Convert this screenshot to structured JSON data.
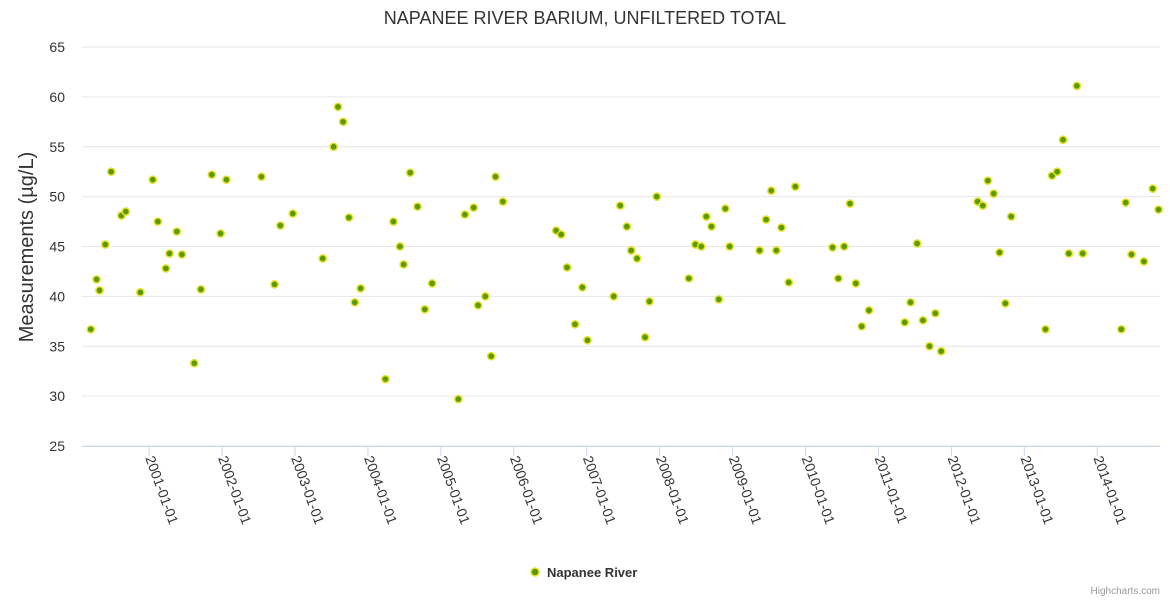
{
  "credits": "Highcharts.com",
  "colors": {
    "marker_fill": "#5a9c00",
    "marker_stroke": "#e8e030",
    "grid": "#e6e6e6"
  },
  "chart_data": {
    "type": "scatter",
    "title": "NAPANEE RIVER BARIUM, UNFILTERED TOTAL",
    "xlabel": "",
    "ylabel": "Measurements (µg/L)",
    "ylim": [
      25,
      65
    ],
    "yticks": [
      25,
      30,
      35,
      40,
      45,
      50,
      55,
      60,
      65
    ],
    "xlim": [
      2000.08,
      2014.86
    ],
    "xticks": [
      {
        "value": 2001.0,
        "label": "2001-01-01"
      },
      {
        "value": 2002.0,
        "label": "2002-01-01"
      },
      {
        "value": 2003.0,
        "label": "2003-01-01"
      },
      {
        "value": 2004.0,
        "label": "2004-01-01"
      },
      {
        "value": 2005.0,
        "label": "2005-01-01"
      },
      {
        "value": 2006.0,
        "label": "2006-01-01"
      },
      {
        "value": 2007.0,
        "label": "2007-01-01"
      },
      {
        "value": 2008.0,
        "label": "2008-01-01"
      },
      {
        "value": 2009.0,
        "label": "2009-01-01"
      },
      {
        "value": 2010.0,
        "label": "2010-01-01"
      },
      {
        "value": 2011.0,
        "label": "2011-01-01"
      },
      {
        "value": 2012.0,
        "label": "2012-01-01"
      },
      {
        "value": 2013.0,
        "label": "2013-01-01"
      },
      {
        "value": 2014.0,
        "label": "2014-01-01"
      }
    ],
    "grid": true,
    "legend_position": "bottom-center",
    "series": [
      {
        "name": "Napanee River",
        "points": [
          [
            2000.2,
            36.7
          ],
          [
            2000.28,
            41.7
          ],
          [
            2000.32,
            40.6
          ],
          [
            2000.4,
            45.2
          ],
          [
            2000.48,
            52.5
          ],
          [
            2000.62,
            48.1
          ],
          [
            2000.68,
            48.5
          ],
          [
            2000.88,
            40.4
          ],
          [
            2001.05,
            51.7
          ],
          [
            2001.12,
            47.5
          ],
          [
            2001.23,
            42.8
          ],
          [
            2001.28,
            44.3
          ],
          [
            2001.38,
            46.5
          ],
          [
            2001.45,
            44.2
          ],
          [
            2001.62,
            33.3
          ],
          [
            2001.71,
            40.7
          ],
          [
            2001.86,
            52.2
          ],
          [
            2001.98,
            46.3
          ],
          [
            2002.06,
            51.7
          ],
          [
            2002.54,
            52.0
          ],
          [
            2002.72,
            41.2
          ],
          [
            2002.8,
            47.1
          ],
          [
            2002.97,
            48.3
          ],
          [
            2003.38,
            43.8
          ],
          [
            2003.53,
            55.0
          ],
          [
            2003.59,
            59.0
          ],
          [
            2003.66,
            57.5
          ],
          [
            2003.74,
            47.9
          ],
          [
            2003.82,
            39.4
          ],
          [
            2003.9,
            40.8
          ],
          [
            2004.24,
            31.7
          ],
          [
            2004.35,
            47.5
          ],
          [
            2004.44,
            45.0
          ],
          [
            2004.49,
            43.2
          ],
          [
            2004.58,
            52.4
          ],
          [
            2004.68,
            49.0
          ],
          [
            2004.78,
            38.7
          ],
          [
            2004.88,
            41.3
          ],
          [
            2005.24,
            29.7
          ],
          [
            2005.33,
            48.2
          ],
          [
            2005.45,
            48.9
          ],
          [
            2005.51,
            39.1
          ],
          [
            2005.61,
            40.0
          ],
          [
            2005.69,
            34.0
          ],
          [
            2005.75,
            52.0
          ],
          [
            2005.85,
            49.5
          ],
          [
            2006.58,
            46.6
          ],
          [
            2006.65,
            46.2
          ],
          [
            2006.73,
            42.9
          ],
          [
            2006.84,
            37.2
          ],
          [
            2006.94,
            40.9
          ],
          [
            2007.01,
            35.6
          ],
          [
            2007.37,
            40.0
          ],
          [
            2007.46,
            49.1
          ],
          [
            2007.55,
            47.0
          ],
          [
            2007.61,
            44.6
          ],
          [
            2007.69,
            43.8
          ],
          [
            2007.8,
            35.9
          ],
          [
            2007.86,
            39.5
          ],
          [
            2007.96,
            50.0
          ],
          [
            2008.4,
            41.8
          ],
          [
            2008.49,
            45.2
          ],
          [
            2008.57,
            45.0
          ],
          [
            2008.64,
            48.0
          ],
          [
            2008.71,
            47.0
          ],
          [
            2008.81,
            39.7
          ],
          [
            2008.9,
            48.8
          ],
          [
            2008.96,
            45.0
          ],
          [
            2009.37,
            44.6
          ],
          [
            2009.46,
            47.7
          ],
          [
            2009.53,
            50.6
          ],
          [
            2009.6,
            44.6
          ],
          [
            2009.67,
            46.9
          ],
          [
            2009.77,
            41.4
          ],
          [
            2009.86,
            51.0
          ],
          [
            2010.37,
            44.9
          ],
          [
            2010.45,
            41.8
          ],
          [
            2010.53,
            45.0
          ],
          [
            2010.61,
            49.3
          ],
          [
            2010.69,
            41.3
          ],
          [
            2010.77,
            37.0
          ],
          [
            2010.87,
            38.6
          ],
          [
            2011.36,
            37.4
          ],
          [
            2011.44,
            39.4
          ],
          [
            2011.53,
            45.3
          ],
          [
            2011.61,
            37.6
          ],
          [
            2011.7,
            35.0
          ],
          [
            2011.78,
            38.3
          ],
          [
            2011.86,
            34.5
          ],
          [
            2012.36,
            49.5
          ],
          [
            2012.43,
            49.1
          ],
          [
            2012.5,
            51.6
          ],
          [
            2012.58,
            50.3
          ],
          [
            2012.66,
            44.4
          ],
          [
            2012.74,
            39.3
          ],
          [
            2012.82,
            48.0
          ],
          [
            2013.29,
            36.7
          ],
          [
            2013.38,
            52.1
          ],
          [
            2013.45,
            52.5
          ],
          [
            2013.53,
            55.7
          ],
          [
            2013.61,
            44.3
          ],
          [
            2013.72,
            61.1
          ],
          [
            2013.8,
            44.3
          ],
          [
            2014.33,
            36.7
          ],
          [
            2014.39,
            49.4
          ],
          [
            2014.47,
            44.2
          ],
          [
            2014.64,
            43.5
          ],
          [
            2014.76,
            50.8
          ],
          [
            2014.84,
            48.7
          ]
        ]
      }
    ]
  }
}
